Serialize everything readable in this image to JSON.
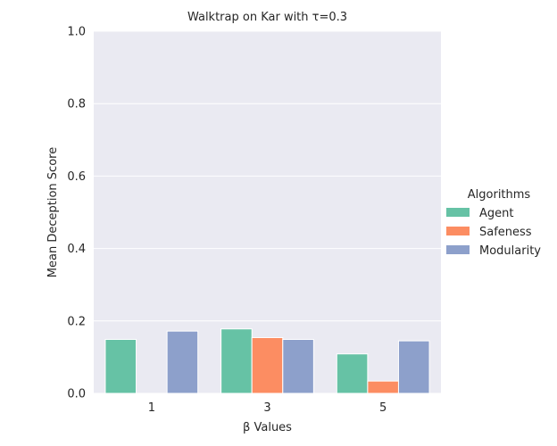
{
  "chart_data": {
    "type": "bar",
    "title": "Walktrap on Kar with τ=0.3",
    "xlabel": "β Values",
    "ylabel": "Mean Deception Score",
    "categories": [
      "1",
      "3",
      "5"
    ],
    "ylim": [
      0,
      1.0
    ],
    "yticks": [
      0.0,
      0.2,
      0.4,
      0.6,
      0.8,
      1.0
    ],
    "ytick_labels": [
      "0.0",
      "0.2",
      "0.4",
      "0.6",
      "0.8",
      "1.0"
    ],
    "grid": true,
    "legend": {
      "title": "Algorithms",
      "placement": "right-outside"
    },
    "series": [
      {
        "name": "Agent",
        "color": "#66c2a5",
        "values": [
          0.149,
          0.178,
          0.109
        ]
      },
      {
        "name": "Safeness",
        "color": "#fc8d62",
        "values": [
          0.0,
          0.154,
          0.034
        ]
      },
      {
        "name": "Modularity",
        "color": "#8da0cb",
        "values": [
          0.172,
          0.149,
          0.145
        ]
      }
    ],
    "plot_background": "#eaeaf2"
  }
}
